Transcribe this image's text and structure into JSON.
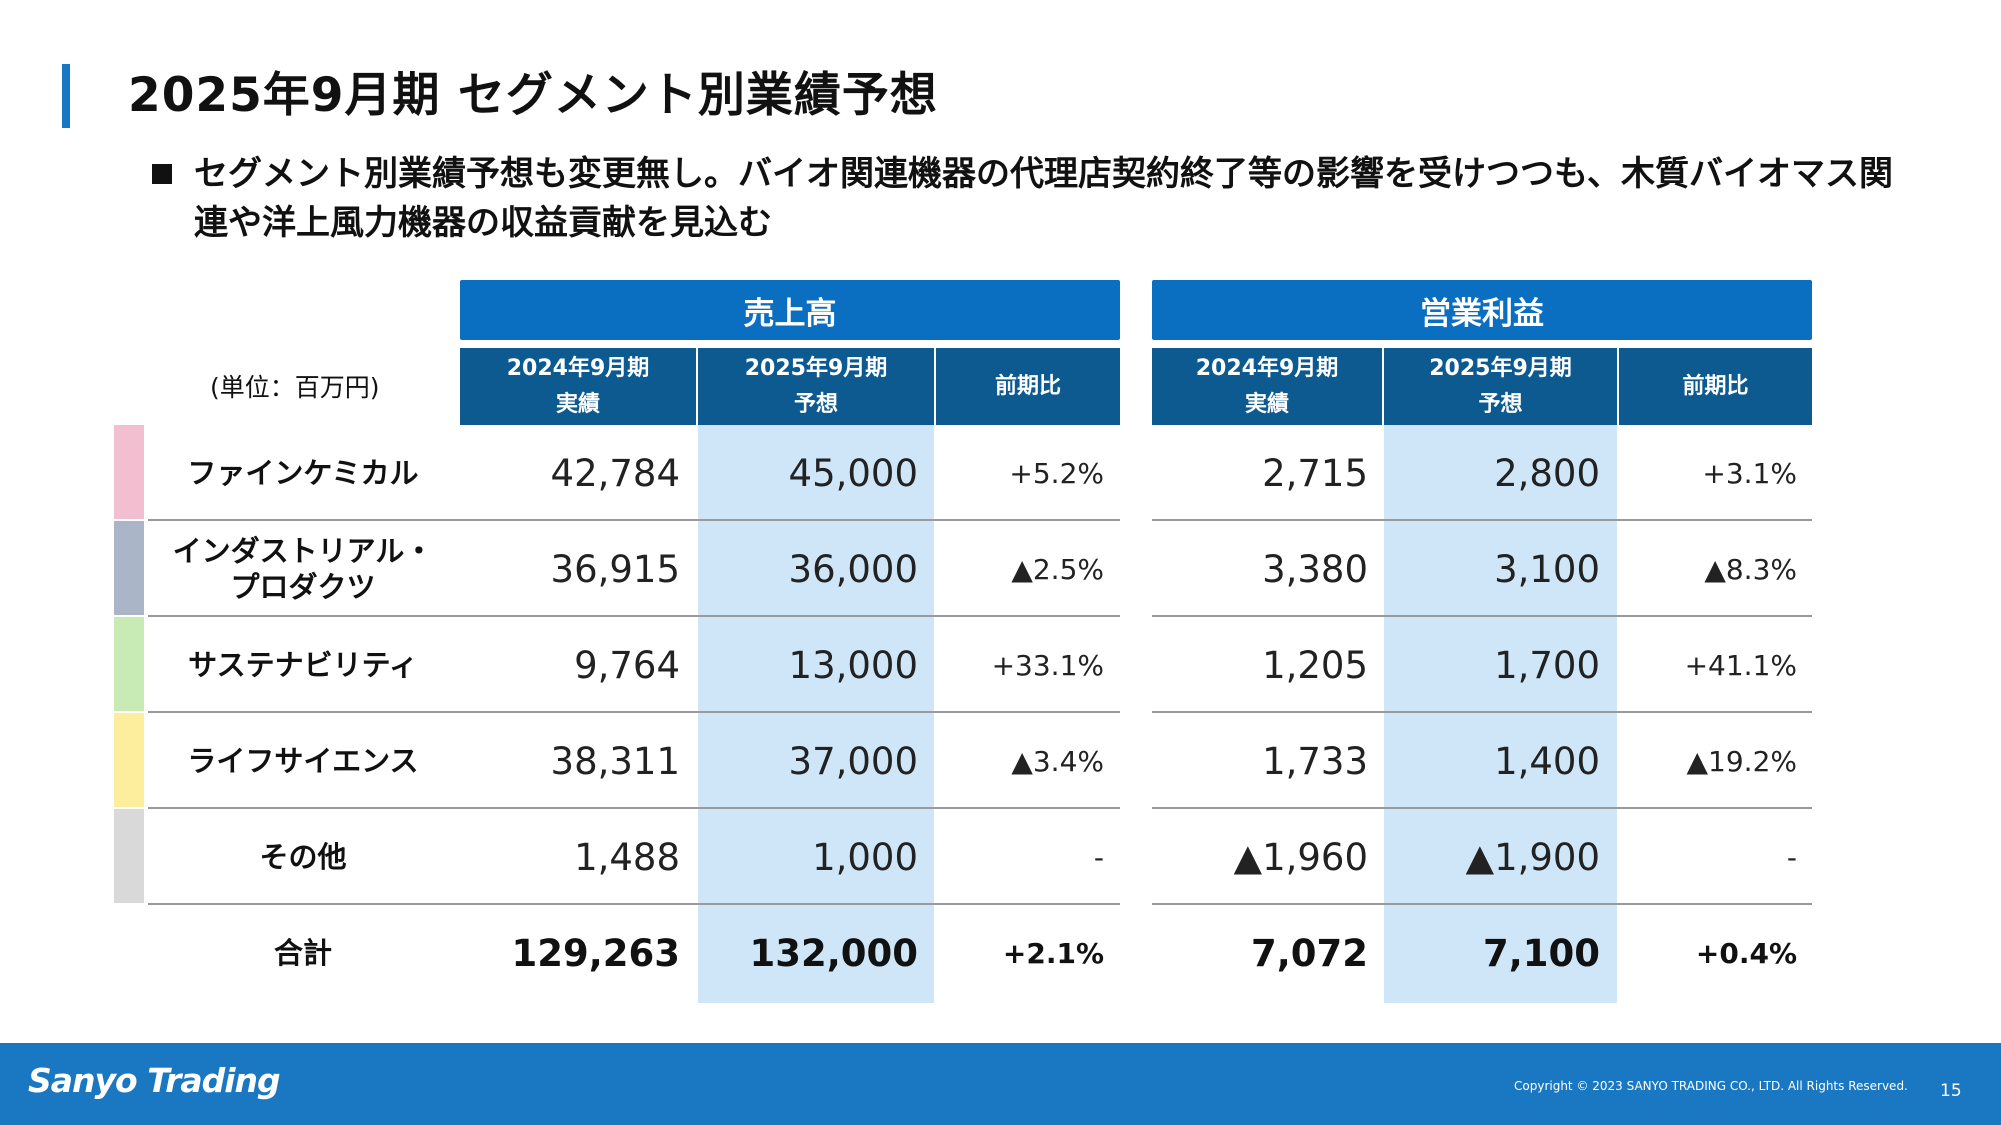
{
  "page": {
    "title": "2025年9月期 セグメント別業績予想",
    "bullet": "セグメント別業績予想も変更無し。バイオ関連機器の代理店契約終了等の影響を受けつつも、木質バイオマス関連や洋上風力機器の収益貢献を見込む"
  },
  "table": {
    "unit": "(単位：百万円)",
    "sales_header": "売上高",
    "profit_header": "営業利益",
    "sub_headers": {
      "sales_prev": [
        "2024年9月期",
        "実績"
      ],
      "sales_next": [
        "2025年9月期",
        "予想"
      ],
      "sales_ratio": "前期比",
      "profit_prev": [
        "2024年9月期",
        "実績"
      ],
      "profit_next": [
        "2025年9月期",
        "予想"
      ],
      "profit_ratio": "前期比"
    },
    "rows": [
      {
        "name": "ファインケミカル",
        "color": "#f2bfd0",
        "sales_prev": "42,784",
        "sales_next": "45,000",
        "sales_ratio": "+5.2%",
        "profit_prev": "2,715",
        "profit_next": "2,800",
        "profit_ratio": "+3.1%"
      },
      {
        "name": "インダストリアル・\nプロダクツ",
        "color": "#aab5c8",
        "sales_prev": "36,915",
        "sales_next": "36,000",
        "sales_ratio": "▲2.5%",
        "profit_prev": "3,380",
        "profit_next": "3,100",
        "profit_ratio": "▲8.3%"
      },
      {
        "name": "サステナビリティ",
        "color": "#c8eab4",
        "sales_prev": "9,764",
        "sales_next": "13,000",
        "sales_ratio": "+33.1%",
        "profit_prev": "1,205",
        "profit_next": "1,700",
        "profit_ratio": "+41.1%"
      },
      {
        "name": "ライフサイエンス",
        "color": "#fdee9e",
        "sales_prev": "38,311",
        "sales_next": "37,000",
        "sales_ratio": "▲3.4%",
        "profit_prev": "1,733",
        "profit_next": "1,400",
        "profit_ratio": "▲19.2%"
      },
      {
        "name": "その他",
        "color": "#d9d9d9",
        "sales_prev": "1,488",
        "sales_next": "1,000",
        "sales_ratio": "-",
        "profit_prev": "▲1,960",
        "profit_next": "▲1,900",
        "profit_ratio": "-"
      }
    ],
    "total": {
      "name": "合計",
      "sales_prev": "129,263",
      "sales_next": "132,000",
      "sales_ratio": "+2.1%",
      "profit_prev": "7,072",
      "profit_next": "7,100",
      "profit_ratio": "+0.4%"
    }
  },
  "footer": {
    "logo": "Sanyo Trading",
    "copyright": "Copyright © 2023 SANYO TRADING CO., LTD. All Rights Reserved.",
    "page_number": "15"
  }
}
